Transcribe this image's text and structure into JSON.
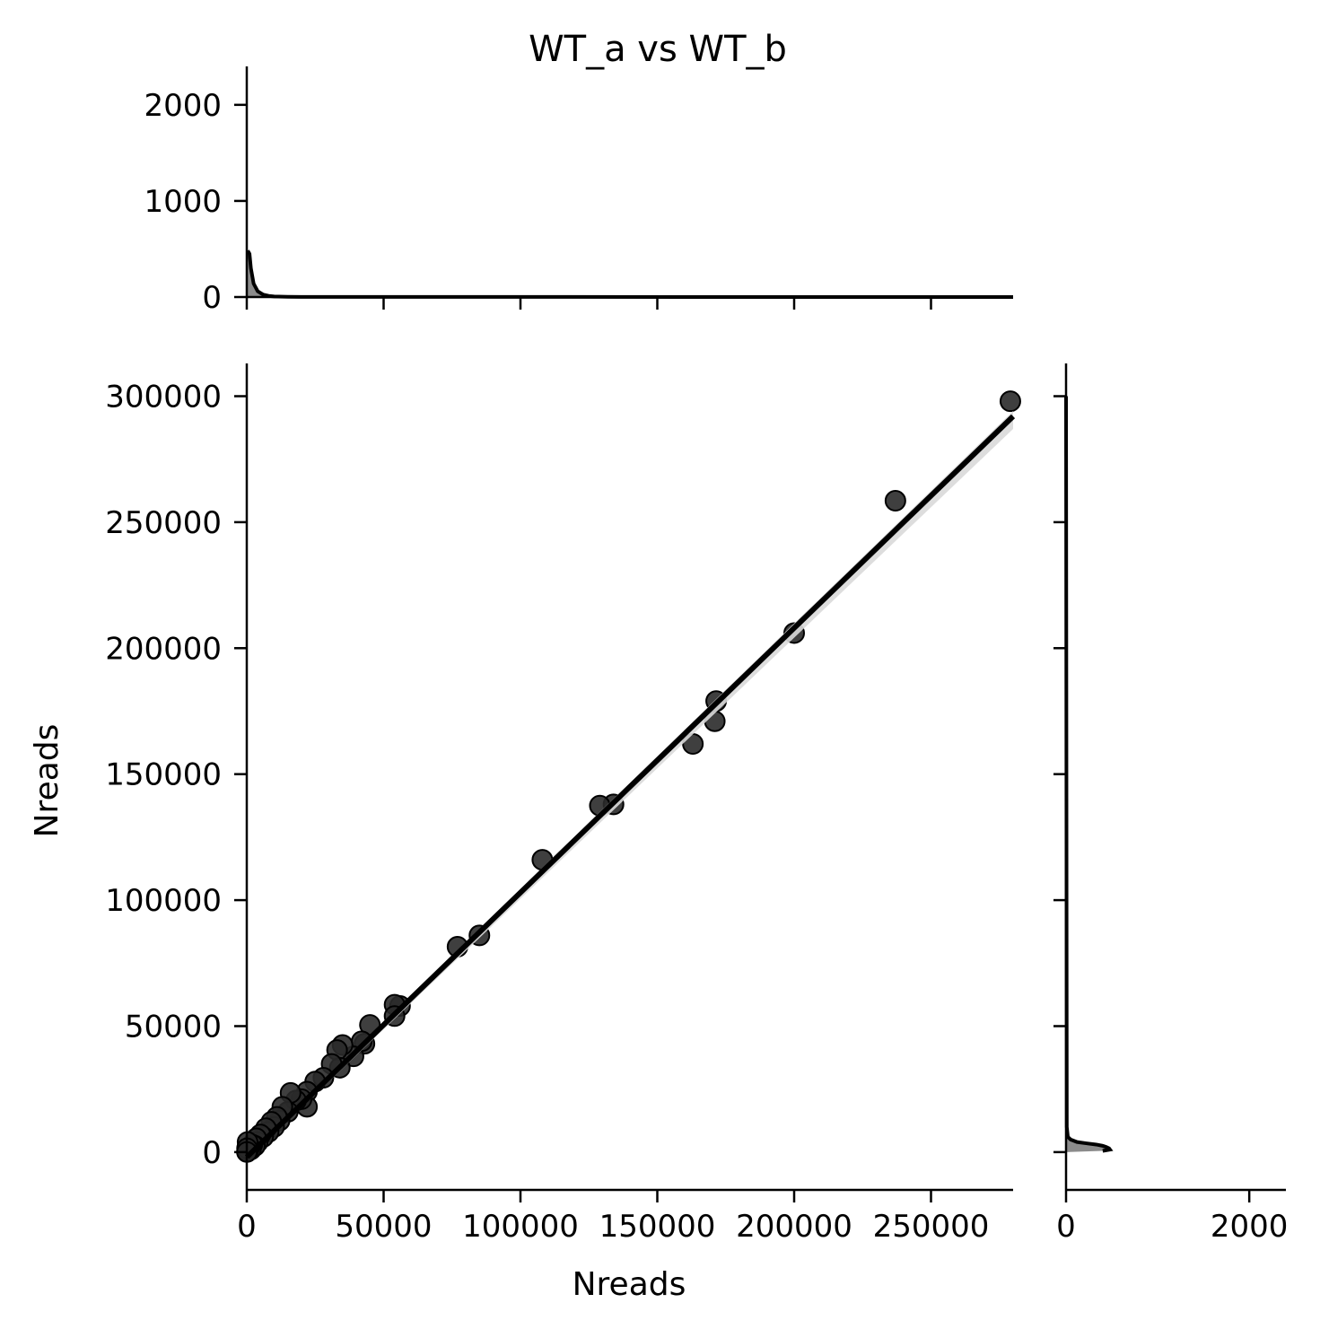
{
  "chart_data": {
    "type": "scatter",
    "title": "WT_a vs WT_b",
    "xlabel": "Nreads",
    "ylabel": "Nreads",
    "xlim": [
      0,
      280000
    ],
    "ylim": [
      -15000,
      313000
    ],
    "x_ticks": [
      0,
      50000,
      100000,
      150000,
      200000,
      250000
    ],
    "y_ticks": [
      0,
      50000,
      100000,
      150000,
      200000,
      250000,
      300000
    ],
    "regression": {
      "x": [
        0,
        280000
      ],
      "y": [
        -2000,
        292000
      ]
    },
    "points": [
      {
        "x": 279000,
        "y": 298000
      },
      {
        "x": 237000,
        "y": 258500
      },
      {
        "x": 200000,
        "y": 206000
      },
      {
        "x": 171500,
        "y": 179000
      },
      {
        "x": 171000,
        "y": 171000
      },
      {
        "x": 163000,
        "y": 162000
      },
      {
        "x": 134000,
        "y": 138000
      },
      {
        "x": 129000,
        "y": 137500
      },
      {
        "x": 108000,
        "y": 116000
      },
      {
        "x": 85000,
        "y": 86000
      },
      {
        "x": 77000,
        "y": 81500
      },
      {
        "x": 56000,
        "y": 58000
      },
      {
        "x": 54000,
        "y": 58500
      },
      {
        "x": 54000,
        "y": 54000
      },
      {
        "x": 45000,
        "y": 50500
      },
      {
        "x": 43000,
        "y": 43000
      },
      {
        "x": 42000,
        "y": 44000
      },
      {
        "x": 39000,
        "y": 38000
      },
      {
        "x": 35000,
        "y": 42500
      },
      {
        "x": 33000,
        "y": 40500
      },
      {
        "x": 34000,
        "y": 33500
      },
      {
        "x": 31000,
        "y": 35000
      },
      {
        "x": 28000,
        "y": 29500
      },
      {
        "x": 25000,
        "y": 28000
      },
      {
        "x": 22000,
        "y": 24000
      },
      {
        "x": 22000,
        "y": 18000
      },
      {
        "x": 20000,
        "y": 21000
      },
      {
        "x": 18000,
        "y": 20500
      },
      {
        "x": 16000,
        "y": 23500
      },
      {
        "x": 15000,
        "y": 16000
      },
      {
        "x": 13000,
        "y": 18000
      },
      {
        "x": 12000,
        "y": 12500
      },
      {
        "x": 11000,
        "y": 14000
      },
      {
        "x": 10000,
        "y": 10000
      },
      {
        "x": 9000,
        "y": 12000
      },
      {
        "x": 8000,
        "y": 8000
      },
      {
        "x": 7000,
        "y": 9500
      },
      {
        "x": 6000,
        "y": 6000
      },
      {
        "x": 5000,
        "y": 7000
      },
      {
        "x": 4000,
        "y": 4000
      },
      {
        "x": 3500,
        "y": 5500
      },
      {
        "x": 3000,
        "y": 2500
      },
      {
        "x": 2000,
        "y": 3000
      },
      {
        "x": 1500,
        "y": 1000
      },
      {
        "x": 1000,
        "y": 2000
      },
      {
        "x": 500,
        "y": 500
      },
      {
        "x": 300,
        "y": 4000
      },
      {
        "x": 200,
        "y": 200
      },
      {
        "x": 100,
        "y": 1500
      },
      {
        "x": 50,
        "y": 50
      }
    ],
    "top_marginal": {
      "ylim": [
        0,
        2400
      ],
      "y_ticks": [
        0,
        1000,
        2000
      ],
      "x": [
        0,
        300,
        600,
        1000,
        1500,
        2500,
        4000,
        6000,
        8000,
        10000,
        15000,
        20000,
        280000
      ],
      "density": [
        650,
        480,
        470,
        450,
        300,
        140,
        60,
        25,
        12,
        6,
        2,
        1,
        0
      ]
    },
    "right_marginal": {
      "xlim": [
        0,
        2400
      ],
      "x_ticks": [
        0,
        2000
      ],
      "y": [
        300000,
        10000,
        6000,
        5000,
        4000,
        3500,
        3000,
        2500,
        2000,
        1500,
        1000,
        500,
        0
      ],
      "density": [
        0,
        8,
        20,
        50,
        120,
        220,
        330,
        400,
        440,
        470,
        480,
        400,
        0
      ]
    }
  }
}
